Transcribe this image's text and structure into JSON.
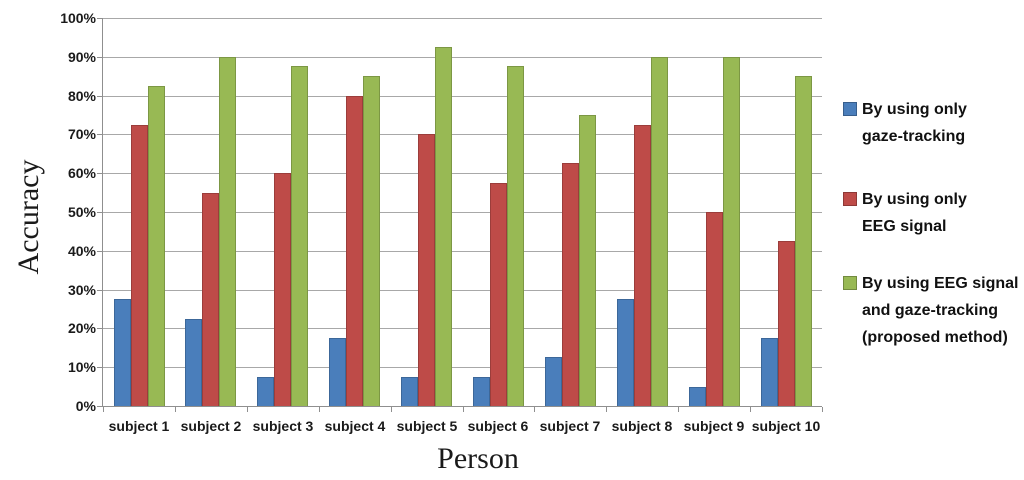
{
  "chart_data": {
    "type": "bar",
    "title": "",
    "xlabel": "Person",
    "ylabel": "Accuracy",
    "categories": [
      "subject 1",
      "subject 2",
      "subject 3",
      "subject 4",
      "subject 5",
      "subject 6",
      "subject 7",
      "subject 8",
      "subject 9",
      "subject 10"
    ],
    "series": [
      {
        "name": "By using only gaze-tracking",
        "color": "#4A7EBB",
        "values": [
          27.5,
          22.5,
          7.5,
          17.5,
          7.5,
          7.5,
          12.5,
          27.5,
          5,
          17.5
        ]
      },
      {
        "name": "By using only EEG signal",
        "color": "#BE4B48",
        "values": [
          72.5,
          55,
          60,
          80,
          70,
          57.5,
          62.5,
          72.5,
          50,
          42.5
        ]
      },
      {
        "name": "By using EEG signal and gaze-tracking (proposed method)",
        "color": "#98B954",
        "values": [
          82.5,
          90,
          87.5,
          85,
          92.5,
          87.5,
          75,
          90,
          90,
          85
        ]
      }
    ],
    "ylim": [
      0,
      100
    ],
    "ytick_step": 10,
    "ytick_labels": [
      "0%",
      "10%",
      "20%",
      "30%",
      "40%",
      "50%",
      "60%",
      "70%",
      "80%",
      "90%",
      "100%"
    ],
    "grid": true,
    "legend_position": "right",
    "legend_entries": [
      {
        "lines": [
          "By using only",
          "gaze-tracking"
        ],
        "color": "#4A7EBB"
      },
      {
        "lines": [
          "By using only",
          "EEG signal"
        ],
        "color": "#BE4B48"
      },
      {
        "lines": [
          "By using EEG signal",
          "and gaze-tracking",
          "(proposed method)"
        ],
        "color": "#98B954"
      }
    ],
    "colors": {
      "grid": "#a8a8a8",
      "axis": "#8f8f8f",
      "text": "#1a1a1a"
    }
  }
}
